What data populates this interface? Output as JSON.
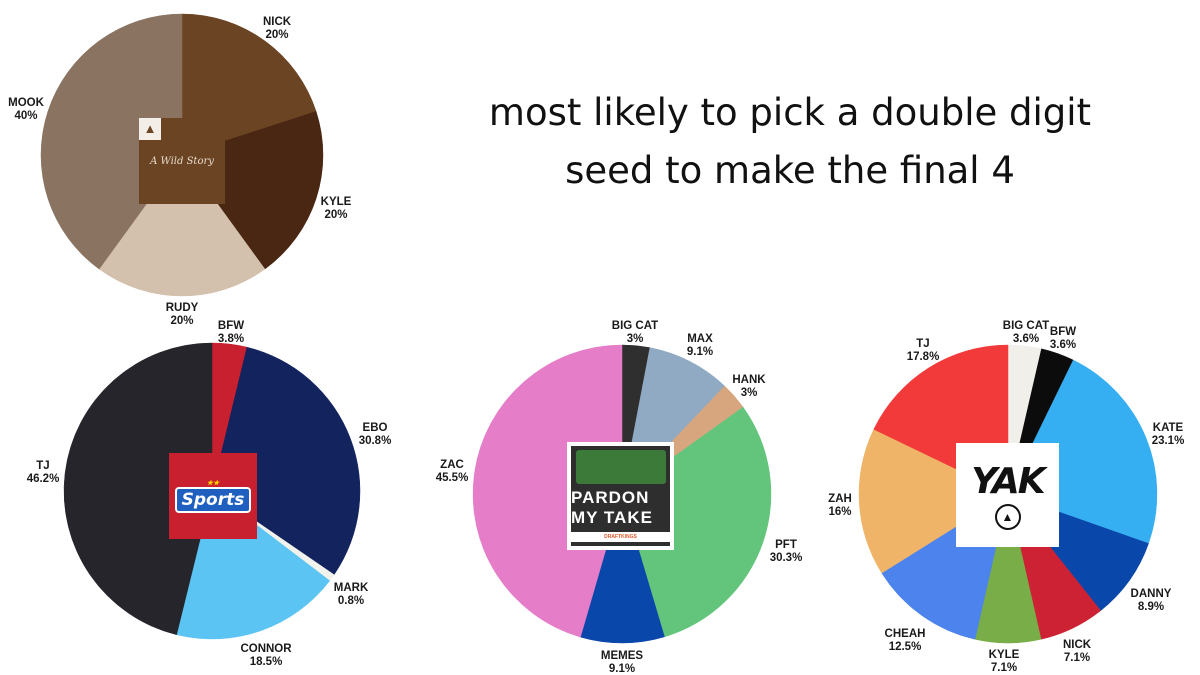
{
  "title": {
    "line1": "most likely to pick a double digit",
    "line2": "seed to make the final 4"
  },
  "logos": {
    "pie1_name": "A Wild Story",
    "pie2_name": "Sports",
    "pie3_name": "PARDON MY TAKE",
    "pie3_sponsor": "DRAFTKINGS",
    "pie4_name": "YAK"
  },
  "chart_data": [
    {
      "type": "pie",
      "slices": [
        {
          "label": "NICK",
          "pct": "20%",
          "value": 20,
          "color": "#6b4423"
        },
        {
          "label": "KYLE",
          "pct": "20%",
          "value": 20,
          "color": "#4a2712"
        },
        {
          "label": "RUDY",
          "pct": "20%",
          "value": 20,
          "color": "#d3c0ad"
        },
        {
          "label": "MOOK",
          "pct": "40%",
          "value": 40,
          "color": "#8a7360"
        }
      ]
    },
    {
      "type": "pie",
      "slices": [
        {
          "label": "BFW",
          "pct": "3.8%",
          "value": 3.8,
          "color": "#c8202f"
        },
        {
          "label": "EBO",
          "pct": "30.8%",
          "value": 30.8,
          "color": "#13235e"
        },
        {
          "label": "MARK",
          "pct": "0.8%",
          "value": 0.8,
          "color": "#f2f2ec"
        },
        {
          "label": "CONNOR",
          "pct": "18.5%",
          "value": 18.5,
          "color": "#5bc4f2"
        },
        {
          "label": "TJ",
          "pct": "46.2%",
          "value": 46.2,
          "color": "#25252b"
        }
      ]
    },
    {
      "type": "pie",
      "slices": [
        {
          "label": "BIG CAT",
          "pct": "3%",
          "value": 3,
          "color": "#2f2f2f"
        },
        {
          "label": "MAX",
          "pct": "9.1%",
          "value": 9.1,
          "color": "#8faac2"
        },
        {
          "label": "HANK",
          "pct": "3%",
          "value": 3,
          "color": "#d7a57e"
        },
        {
          "label": "PFT",
          "pct": "30.3%",
          "value": 30.3,
          "color": "#63c57c"
        },
        {
          "label": "MEMES",
          "pct": "9.1%",
          "value": 9.1,
          "color": "#0a47aa"
        },
        {
          "label": "ZAC",
          "pct": "45.5%",
          "value": 45.5,
          "color": "#e57dc8"
        }
      ]
    },
    {
      "type": "pie",
      "slices": [
        {
          "label": "BIG CAT",
          "pct": "3.6%",
          "value": 3.6,
          "color": "#f1efe9"
        },
        {
          "label": "BFW",
          "pct": "3.6%",
          "value": 3.6,
          "color": "#0c0c0c"
        },
        {
          "label": "KATE",
          "pct": "23.1%",
          "value": 23.1,
          "color": "#36aef2"
        },
        {
          "label": "DANNY",
          "pct": "8.9%",
          "value": 8.9,
          "color": "#0a47aa"
        },
        {
          "label": "NICK",
          "pct": "7.1%",
          "value": 7.1,
          "color": "#cc2233"
        },
        {
          "label": "KYLE",
          "pct": "7.1%",
          "value": 7.1,
          "color": "#78ad48"
        },
        {
          "label": "CHEAH",
          "pct": "12.5%",
          "value": 12.5,
          "color": "#4c83ec"
        },
        {
          "label": "ZAH",
          "pct": "16%",
          "value": 16,
          "color": "#f0b468"
        },
        {
          "label": "TJ",
          "pct": "17.8%",
          "value": 17.8,
          "color": "#f23a3a"
        }
      ]
    }
  ]
}
